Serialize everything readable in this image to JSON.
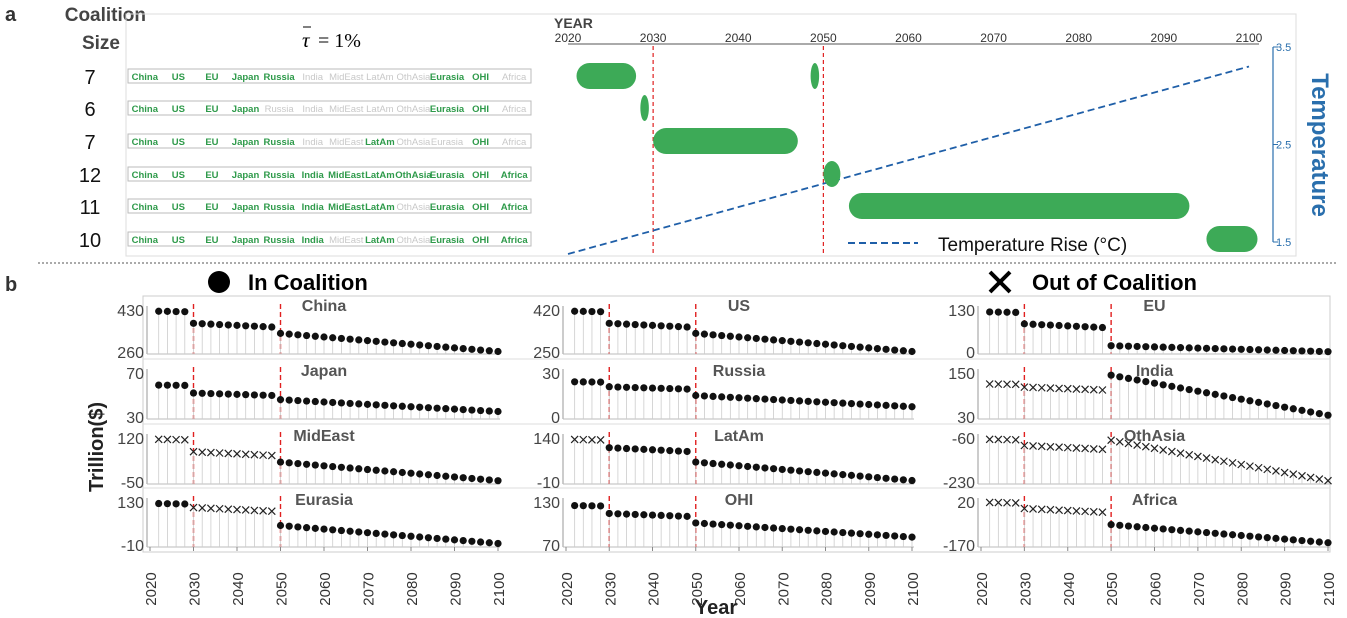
{
  "panel_a": {
    "letter": "a",
    "size_header_line1": "Coalition",
    "size_header_line2": "Size",
    "tau_sym": "τ",
    "tau_rest": " = 1%",
    "year_label": "YEAR",
    "temperature_label": "Temperature",
    "legend_label": "Temperature Rise (°C)",
    "chart_data": {
      "type": "timeline",
      "x_ticks": [
        2020,
        2030,
        2040,
        2050,
        2060,
        2070,
        2080,
        2090,
        2100
      ],
      "xlim": [
        2020,
        2100
      ],
      "temp_ticks": [
        "3.5",
        "2.5",
        "1.5"
      ],
      "temp_ylim": [
        1.5,
        3.5
      ],
      "temperature_line": {
        "x": [
          2020,
          2100
        ],
        "y": [
          1.5,
          3.3
        ]
      },
      "vlines": [
        2030,
        2050
      ],
      "regions": [
        "China",
        "US",
        "EU",
        "Japan",
        "Russia",
        "India",
        "MidEast",
        "LatAm",
        "OthAsia",
        "Eurasia",
        "OHI",
        "Africa"
      ],
      "coalitions": [
        {
          "size": "7",
          "members": [
            1,
            1,
            1,
            1,
            1,
            0,
            0,
            0,
            0,
            1,
            1,
            0
          ],
          "bars": [
            [
              2021,
              2028
            ],
            [
              2048.5,
              2049.5
            ]
          ]
        },
        {
          "size": "6",
          "members": [
            1,
            1,
            1,
            1,
            0,
            0,
            0,
            0,
            0,
            1,
            1,
            0
          ],
          "bars": [
            [
              2028.5,
              2029.5
            ]
          ]
        },
        {
          "size": "7",
          "members": [
            1,
            1,
            1,
            1,
            1,
            0,
            0,
            1,
            0,
            0,
            1,
            0
          ],
          "bars": [
            [
              2030,
              2047
            ]
          ]
        },
        {
          "size": "12",
          "members": [
            1,
            1,
            1,
            1,
            1,
            1,
            1,
            1,
            1,
            1,
            1,
            1
          ],
          "bars": [
            [
              2050,
              2052
            ]
          ]
        },
        {
          "size": "11",
          "members": [
            1,
            1,
            1,
            1,
            1,
            1,
            1,
            1,
            0,
            1,
            1,
            1
          ],
          "bars": [
            [
              2053,
              2093
            ]
          ]
        },
        {
          "size": "10",
          "members": [
            1,
            1,
            1,
            1,
            1,
            1,
            0,
            1,
            0,
            1,
            1,
            1
          ],
          "bars": [
            [
              2095,
              2101
            ]
          ]
        }
      ]
    }
  },
  "panel_b": {
    "letter": "b",
    "in_label": "In Coalition",
    "out_label": "Out of Coalition",
    "ylabel": "Trillion($)",
    "xlabel": "Year",
    "chart_data": {
      "type": "scatter",
      "x_ticks": [
        "2020",
        "2030",
        "2040",
        "2050",
        "2060",
        "2070",
        "2080",
        "2090",
        "2100"
      ],
      "xlim": [
        2020,
        2100
      ],
      "regions": [
        {
          "name": "China",
          "ymin": "260",
          "ymax": "430",
          "lo": 260,
          "hi": 430,
          "start": 425,
          "end": 262,
          "j1": 0.3,
          "j2": 0.2,
          "status": [
            "in",
            "in",
            "in"
          ]
        },
        {
          "name": "US",
          "ymin": "250",
          "ymax": "420",
          "lo": 250,
          "hi": 420,
          "start": 415,
          "end": 252,
          "j1": 0.3,
          "j2": 0.35,
          "status": [
            "in",
            "in",
            "in"
          ]
        },
        {
          "name": "EU",
          "ymin": "0",
          "ymax": "130",
          "lo": 0,
          "hi": 130,
          "start": 124,
          "end": 1,
          "j1": 0.3,
          "j2": 0.85,
          "status": [
            "in",
            "in",
            "in"
          ]
        },
        {
          "name": "Japan",
          "ymin": "30",
          "ymax": "70",
          "lo": 30,
          "hi": 70,
          "start": 59,
          "end": 35,
          "j1": 0.3,
          "j2": 0.35,
          "status": [
            "in",
            "in",
            "in"
          ]
        },
        {
          "name": "Russia",
          "ymin": "0",
          "ymax": "30",
          "lo": 0,
          "hi": 30,
          "start": 24,
          "end": 7,
          "j1": 0.2,
          "j2": 0.3,
          "status": [
            "in",
            "in",
            "in"
          ]
        },
        {
          "name": "India",
          "ymin": "30",
          "ymax": "150",
          "lo": 30,
          "hi": 150,
          "start": 120,
          "end": 35,
          "j1": 0.1,
          "j2": -1.2,
          "status": [
            "out",
            "out",
            "in"
          ]
        },
        {
          "name": "MidEast",
          "ymin": "-50",
          "ymax": "120",
          "lo": -50,
          "hi": 120,
          "start": 115,
          "end": -45,
          "j1": 0.3,
          "j2": 0.2,
          "status": [
            "out",
            "out",
            "in"
          ]
        },
        {
          "name": "LatAm",
          "ymin": "-10",
          "ymax": "140",
          "lo": -10,
          "hi": 140,
          "start": 135,
          "end": -5,
          "j1": 0.2,
          "j2": 0.1,
          "status": [
            "out",
            "in",
            "in"
          ]
        },
        {
          "name": "OthAsia",
          "ymin": "-230",
          "ymax": "-60",
          "lo": -230,
          "hi": -60,
          "start": -65,
          "end": -225,
          "j1": 0.15,
          "j2": -0.05,
          "status": [
            "out",
            "out",
            "out"
          ]
        },
        {
          "name": "Eurasia",
          "ymin": "-10",
          "ymax": "130",
          "lo": -10,
          "hi": 130,
          "start": 125,
          "end": -5,
          "j1": 0.1,
          "j2": 0.35,
          "status": [
            "in",
            "out",
            "in"
          ]
        },
        {
          "name": "OHI",
          "ymin": "70",
          "ymax": "130",
          "lo": 70,
          "hi": 130,
          "start": 125,
          "end": 81,
          "j1": 0.25,
          "j2": 0.15,
          "status": [
            "in",
            "in",
            "in"
          ]
        },
        {
          "name": "Africa",
          "ymin": "-170",
          "ymax": "20",
          "lo": -170,
          "hi": 20,
          "start": 18,
          "end": -160,
          "j1": 0.15,
          "j2": 0.05,
          "status": [
            "out",
            "out",
            "in"
          ]
        }
      ]
    }
  }
}
